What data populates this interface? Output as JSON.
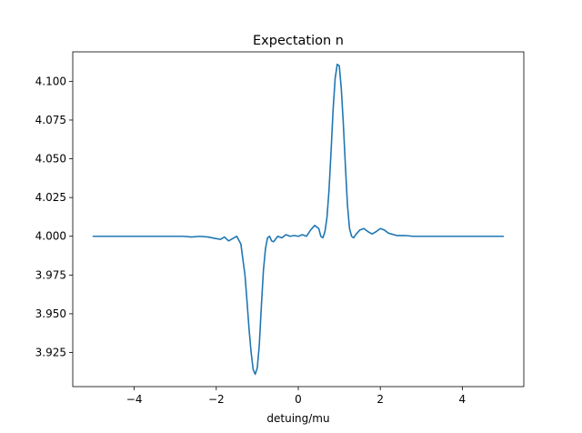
{
  "chart_data": {
    "type": "line",
    "title": "Expectation n",
    "xlabel": "detuing/mu",
    "ylabel": "",
    "xlim": [
      -5.5,
      5.5
    ],
    "ylim": [
      3.903,
      4.119
    ],
    "grid": false,
    "line_color": "#1f77b4",
    "x_ticks": [
      {
        "value": -4,
        "label": "−4"
      },
      {
        "value": -2,
        "label": "−2"
      },
      {
        "value": 0,
        "label": "0"
      },
      {
        "value": 2,
        "label": "2"
      },
      {
        "value": 4,
        "label": "4"
      }
    ],
    "y_ticks": [
      {
        "value": 3.925,
        "label": "3.925"
      },
      {
        "value": 3.95,
        "label": "3.950"
      },
      {
        "value": 3.975,
        "label": "3.975"
      },
      {
        "value": 4.0,
        "label": "4.000"
      },
      {
        "value": 4.025,
        "label": "4.025"
      },
      {
        "value": 4.05,
        "label": "4.050"
      },
      {
        "value": 4.075,
        "label": "4.075"
      },
      {
        "value": 4.1,
        "label": "4.100"
      }
    ],
    "series": [
      {
        "name": "",
        "x": [
          -5.0,
          -4.5,
          -4.0,
          -3.5,
          -3.0,
          -2.8,
          -2.6,
          -2.4,
          -2.2,
          -2.0,
          -1.9,
          -1.8,
          -1.7,
          -1.6,
          -1.5,
          -1.4,
          -1.3,
          -1.25,
          -1.2,
          -1.15,
          -1.1,
          -1.05,
          -1.0,
          -0.95,
          -0.9,
          -0.85,
          -0.8,
          -0.75,
          -0.7,
          -0.65,
          -0.6,
          -0.5,
          -0.4,
          -0.3,
          -0.2,
          -0.1,
          0.0,
          0.1,
          0.2,
          0.3,
          0.4,
          0.5,
          0.55,
          0.6,
          0.65,
          0.7,
          0.75,
          0.8,
          0.85,
          0.9,
          0.95,
          1.0,
          1.05,
          1.1,
          1.15,
          1.2,
          1.25,
          1.3,
          1.35,
          1.4,
          1.5,
          1.6,
          1.7,
          1.8,
          1.9,
          2.0,
          2.1,
          2.2,
          2.4,
          2.6,
          2.8,
          3.0,
          3.5,
          4.0,
          4.5,
          5.0
        ],
        "y": [
          4.0,
          4.0,
          4.0,
          4.0,
          4.0,
          4.0,
          3.9995,
          4.0,
          3.9995,
          3.9985,
          3.998,
          3.9995,
          3.997,
          3.9985,
          4.0,
          3.995,
          3.975,
          3.958,
          3.94,
          3.925,
          3.914,
          3.911,
          3.915,
          3.93,
          3.955,
          3.978,
          3.992,
          3.999,
          4.0,
          3.997,
          3.9965,
          4.0,
          3.999,
          4.001,
          4.0,
          4.0005,
          4.0,
          4.001,
          4.0,
          4.004,
          4.007,
          4.005,
          4.0,
          3.999,
          4.003,
          4.012,
          4.03,
          4.055,
          4.082,
          4.102,
          4.111,
          4.11,
          4.095,
          4.072,
          4.045,
          4.02,
          4.005,
          4.0,
          3.999,
          4.001,
          4.004,
          4.005,
          4.003,
          4.0015,
          4.003,
          4.005,
          4.004,
          4.002,
          4.0005,
          4.0005,
          4.0,
          4.0,
          4.0,
          4.0,
          4.0,
          4.0
        ]
      }
    ]
  }
}
